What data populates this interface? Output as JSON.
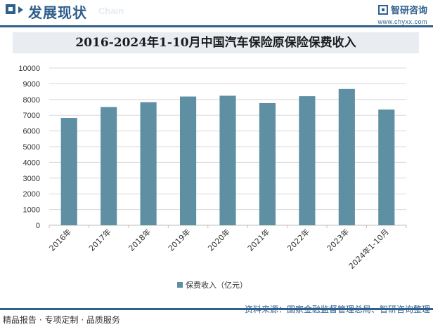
{
  "header": {
    "title": "发展现状",
    "subtitle": "Chain",
    "brand_name": "智研咨询",
    "brand_url": "www.chyxx.com"
  },
  "footer": {
    "left": "精品报告 · 专项定制 · 品质服务",
    "source": "资料来源：国家金融监督管理总局、智研咨询整理"
  },
  "colors": {
    "accent": "#2f5f8c",
    "bar": "#5e8fa3"
  },
  "chart_data": {
    "type": "bar",
    "title": "2016-2024年1-10月中国汽车保险原保险保费收入",
    "categories": [
      "2016年",
      "2017年",
      "2018年",
      "2019年",
      "2020年",
      "2021年",
      "2022年",
      "2023年",
      "2024年1-10月"
    ],
    "series": [
      {
        "name": "保费收入（亿元）",
        "values": [
          6830,
          7520,
          7830,
          8190,
          8240,
          7770,
          8210,
          8670,
          7360
        ]
      }
    ],
    "ylim": [
      0,
      10000
    ],
    "yticks": [
      0,
      1000,
      2000,
      3000,
      4000,
      5000,
      6000,
      7000,
      8000,
      9000,
      10000
    ],
    "grid": true,
    "legend": "bottom-center",
    "xlabel": "",
    "ylabel": ""
  }
}
